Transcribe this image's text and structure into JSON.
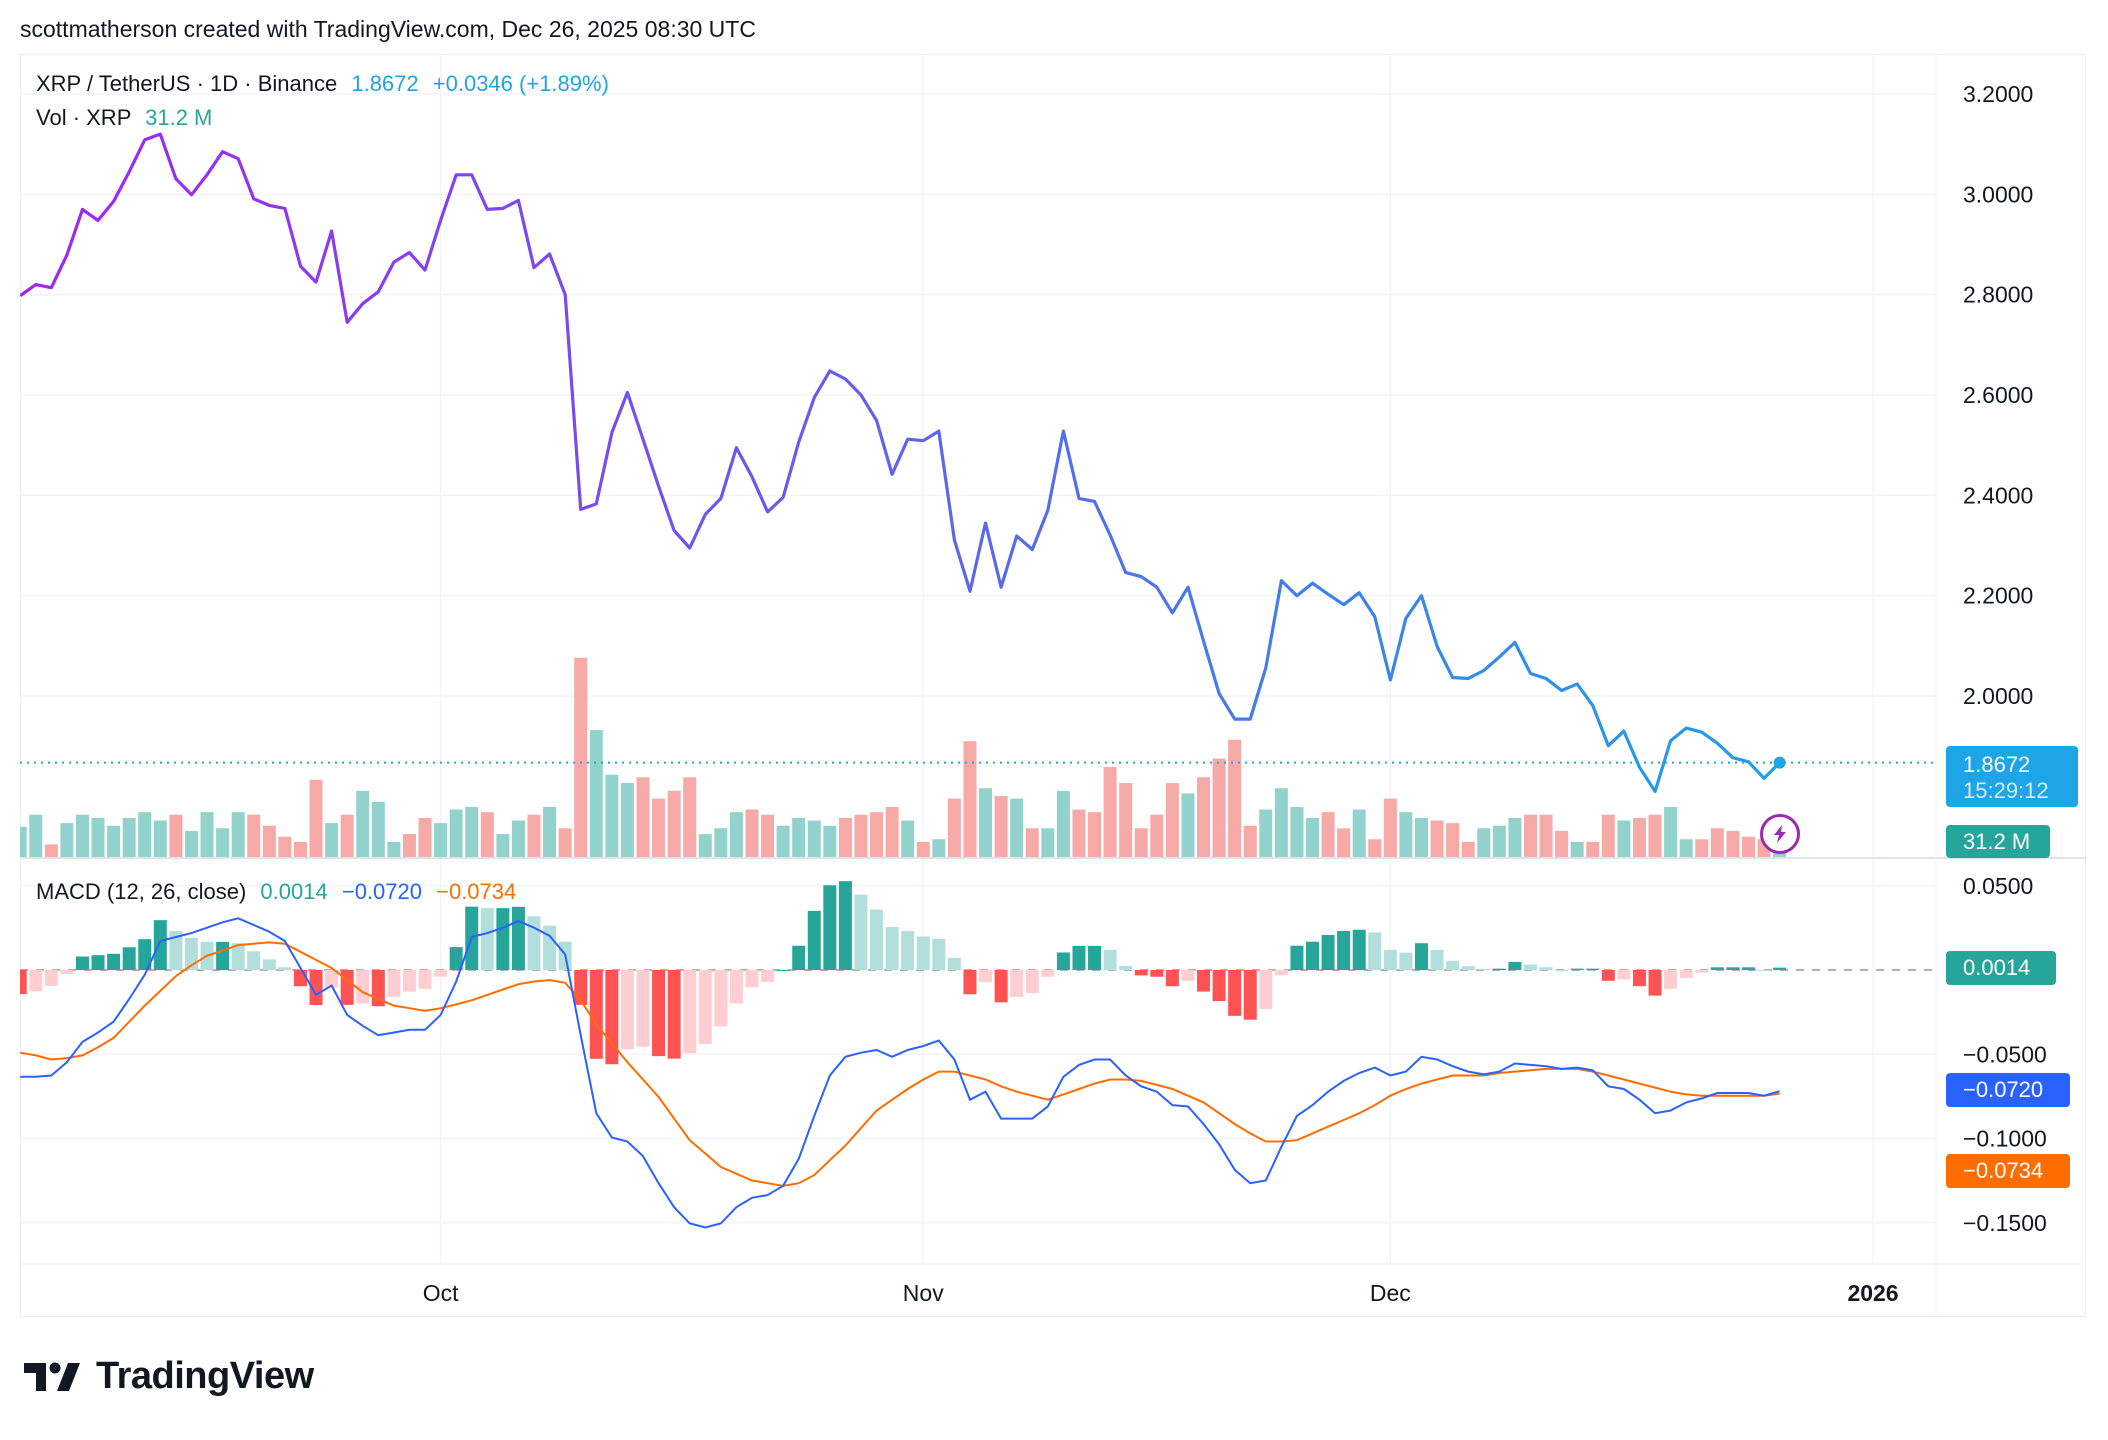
{
  "credit": "scottmatherson created with TradingView.com, Dec 26, 2025 08:30 UTC",
  "legend": {
    "symbol": "XRP / TetherUS · 1D · Binance",
    "price": "1.8672",
    "change": "+0.0346 (+1.89%)",
    "vol_label": "Vol · XRP",
    "vol_value": "31.2 M",
    "macd_label": "MACD (12, 26, close)",
    "macd_hist": "0.0014",
    "macd_line": "−0.0720",
    "macd_signal": "−0.0734"
  },
  "price_badge": {
    "price": "1.8672",
    "countdown": "15:29:12"
  },
  "vol_badge": "31.2 M",
  "macd_badges": {
    "hist": "0.0014",
    "macd": "−0.0720",
    "signal": "−0.0734"
  },
  "logo": "TradingView",
  "colors": {
    "line_start": "#a324f2",
    "line_end": "#1da1e6",
    "price_badge": "#1ea5e8",
    "vol_up": "#92d2cc",
    "vol_down": "#f7a9a7",
    "hist_up_strong": "#26a69a",
    "hist_up_weak": "#b2dfdb",
    "hist_down_strong": "#ff5252",
    "hist_down_weak": "#ffcdd2",
    "macd": "#2962ff",
    "signal": "#ff6d00",
    "lightning": "#9c27b0"
  },
  "chart_data": {
    "type": "line",
    "title": "XRP / TetherUS · 1D · Binance",
    "price_axis": {
      "ticks": [
        "3.2000",
        "3.0000",
        "2.8000",
        "2.6000",
        "2.4000",
        "2.2000",
        "2.0000"
      ],
      "tick_values": [
        3.2,
        3.0,
        2.8,
        2.6,
        2.4,
        2.2,
        2.0
      ],
      "ylim": [
        1.75,
        3.27
      ]
    },
    "macd_axis": {
      "ticks": [
        "0.0500",
        "−0.0500",
        "−0.1000",
        "−0.1500"
      ],
      "tick_values": [
        0.05,
        -0.05,
        -0.1,
        -0.15
      ]
    },
    "time_axis": {
      "ticks": [
        "Oct",
        "Nov",
        "Dec",
        "2026"
      ],
      "tick_dates": [
        "2025-10-01",
        "2025-11-01",
        "2025-12-01",
        "2026-01-01"
      ]
    },
    "grid": true,
    "dates": [
      "2025-09-04",
      "2025-09-05",
      "2025-09-06",
      "2025-09-07",
      "2025-09-08",
      "2025-09-09",
      "2025-09-10",
      "2025-09-11",
      "2025-09-12",
      "2025-09-13",
      "2025-09-14",
      "2025-09-15",
      "2025-09-16",
      "2025-09-17",
      "2025-09-18",
      "2025-09-19",
      "2025-09-20",
      "2025-09-21",
      "2025-09-22",
      "2025-09-23",
      "2025-09-24",
      "2025-09-25",
      "2025-09-26",
      "2025-09-27",
      "2025-09-28",
      "2025-09-29",
      "2025-09-30",
      "2025-10-01",
      "2025-10-02",
      "2025-10-03",
      "2025-10-04",
      "2025-10-05",
      "2025-10-06",
      "2025-10-07",
      "2025-10-08",
      "2025-10-09",
      "2025-10-10",
      "2025-10-11",
      "2025-10-12",
      "2025-10-13",
      "2025-10-14",
      "2025-10-15",
      "2025-10-16",
      "2025-10-17",
      "2025-10-18",
      "2025-10-19",
      "2025-10-20",
      "2025-10-21",
      "2025-10-22",
      "2025-10-23",
      "2025-10-24",
      "2025-10-25",
      "2025-10-26",
      "2025-10-27",
      "2025-10-28",
      "2025-10-29",
      "2025-10-30",
      "2025-10-31",
      "2025-11-01",
      "2025-11-02",
      "2025-11-03",
      "2025-11-04",
      "2025-11-05",
      "2025-11-06",
      "2025-11-07",
      "2025-11-08",
      "2025-11-09",
      "2025-11-10",
      "2025-11-11",
      "2025-11-12",
      "2025-11-13",
      "2025-11-14",
      "2025-11-15",
      "2025-11-16",
      "2025-11-17",
      "2025-11-18",
      "2025-11-19",
      "2025-11-20",
      "2025-11-21",
      "2025-11-22",
      "2025-11-23",
      "2025-11-24",
      "2025-11-25",
      "2025-11-26",
      "2025-11-27",
      "2025-11-28",
      "2025-11-29",
      "2025-11-30",
      "2025-12-01",
      "2025-12-02",
      "2025-12-03",
      "2025-12-04",
      "2025-12-05",
      "2025-12-06",
      "2025-12-07",
      "2025-12-08",
      "2025-12-09",
      "2025-12-10",
      "2025-12-11",
      "2025-12-12",
      "2025-12-13",
      "2025-12-14",
      "2025-12-15",
      "2025-12-16",
      "2025-12-17",
      "2025-12-18",
      "2025-12-19",
      "2025-12-20",
      "2025-12-21",
      "2025-12-22",
      "2025-12-23",
      "2025-12-24",
      "2025-12-25",
      "2025-12-26"
    ],
    "close": [
      2.798,
      2.82,
      2.814,
      2.879,
      2.97,
      2.948,
      2.986,
      3.045,
      3.109,
      3.12,
      3.031,
      2.999,
      3.039,
      3.085,
      3.071,
      2.991,
      2.978,
      2.972,
      2.857,
      2.825,
      2.927,
      2.745,
      2.782,
      2.806,
      2.865,
      2.884,
      2.849,
      2.948,
      3.039,
      3.039,
      2.97,
      2.972,
      2.988,
      2.854,
      2.881,
      2.8,
      2.372,
      2.383,
      2.525,
      2.605,
      2.512,
      2.418,
      2.33,
      2.295,
      2.362,
      2.394,
      2.495,
      2.437,
      2.367,
      2.396,
      2.506,
      2.595,
      2.648,
      2.632,
      2.6,
      2.549,
      2.442,
      2.512,
      2.509,
      2.528,
      2.311,
      2.209,
      2.345,
      2.217,
      2.319,
      2.292,
      2.37,
      2.528,
      2.394,
      2.388,
      2.321,
      2.246,
      2.238,
      2.217,
      2.166,
      2.217,
      2.11,
      2.005,
      1.954,
      1.954,
      2.056,
      2.23,
      2.2,
      2.225,
      2.203,
      2.182,
      2.206,
      2.158,
      2.032,
      2.155,
      2.2,
      2.099,
      2.037,
      2.035,
      2.051,
      2.078,
      2.107,
      2.045,
      2.035,
      2.011,
      2.024,
      1.981,
      1.901,
      1.93,
      1.858,
      1.81,
      1.911,
      1.936,
      1.928,
      1.906,
      1.877,
      1.869,
      1.836,
      1.8672
    ],
    "volume_millions": [
      48,
      67,
      21,
      54,
      67,
      62,
      50,
      62,
      71,
      58,
      67,
      42,
      71,
      46,
      71,
      67,
      50,
      33,
      25,
      121,
      54,
      67,
      104,
      87,
      25,
      37,
      62,
      54,
      75,
      79,
      71,
      37,
      58,
      67,
      79,
      46,
      310,
      198,
      129,
      116,
      125,
      92,
      104,
      125,
      37,
      46,
      71,
      75,
      67,
      50,
      62,
      58,
      50,
      62,
      67,
      71,
      79,
      58,
      25,
      29,
      92,
      181,
      108,
      96,
      92,
      46,
      46,
      104,
      75,
      71,
      141,
      116,
      46,
      67,
      116,
      100,
      125,
      154,
      183,
      50,
      75,
      108,
      79,
      62,
      71,
      46,
      75,
      29,
      92,
      71,
      62,
      58,
      54,
      25,
      46,
      50,
      62,
      67,
      67,
      42,
      25,
      25,
      67,
      58,
      62,
      67,
      79,
      29,
      29,
      46,
      42,
      33,
      29,
      31.2
    ],
    "volume_up": [
      1,
      1,
      0,
      1,
      1,
      1,
      1,
      1,
      1,
      1,
      0,
      1,
      1,
      1,
      1,
      0,
      0,
      0,
      0,
      0,
      1,
      0,
      1,
      1,
      1,
      0,
      0,
      1,
      1,
      1,
      0,
      1,
      1,
      0,
      1,
      0,
      0,
      1,
      1,
      1,
      0,
      0,
      0,
      0,
      1,
      1,
      1,
      0,
      0,
      1,
      1,
      1,
      1,
      0,
      0,
      0,
      0,
      1,
      0,
      1,
      0,
      0,
      1,
      0,
      1,
      0,
      1,
      1,
      0,
      0,
      0,
      0,
      0,
      0,
      0,
      1,
      0,
      0,
      0,
      0,
      1,
      1,
      1,
      1,
      0,
      0,
      1,
      0,
      0,
      1,
      1,
      0,
      0,
      0,
      1,
      1,
      1,
      0,
      0,
      0,
      1,
      0,
      0,
      1,
      0,
      0,
      1,
      1,
      0,
      0,
      0,
      0,
      0,
      1
    ],
    "macd": [
      -0.0634,
      -0.0634,
      -0.0626,
      -0.0547,
      -0.0427,
      -0.0371,
      -0.0307,
      -0.0172,
      -0.0028,
      0.0172,
      0.0196,
      0.0219,
      0.0251,
      0.0283,
      0.0307,
      0.0267,
      0.0227,
      0.0172,
      0.0012,
      -0.0148,
      -0.0092,
      -0.0267,
      -0.0331,
      -0.0387,
      -0.0371,
      -0.0355,
      -0.0355,
      -0.0267,
      -0.0068,
      0.0196,
      0.0219,
      0.0251,
      0.0291,
      0.0251,
      0.0203,
      0.0092,
      -0.0387,
      -0.085,
      -0.0994,
      -0.1018,
      -0.1105,
      -0.1265,
      -0.1408,
      -0.1504,
      -0.1528,
      -0.1504,
      -0.1408,
      -0.1352,
      -0.1336,
      -0.1281,
      -0.1121,
      -0.0866,
      -0.0626,
      -0.0515,
      -0.0491,
      -0.0475,
      -0.0515,
      -0.0475,
      -0.0451,
      -0.0419,
      -0.0531,
      -0.077,
      -0.0722,
      -0.0882,
      -0.0882,
      -0.0882,
      -0.081,
      -0.0634,
      -0.0563,
      -0.0531,
      -0.0531,
      -0.0626,
      -0.069,
      -0.0722,
      -0.0802,
      -0.081,
      -0.0914,
      -0.1034,
      -0.1186,
      -0.1265,
      -0.1249,
      -0.1049,
      -0.0866,
      -0.0802,
      -0.0722,
      -0.0658,
      -0.0611,
      -0.0579,
      -0.0626,
      -0.0603,
      -0.0515,
      -0.0531,
      -0.0571,
      -0.0603,
      -0.0619,
      -0.0603,
      -0.0555,
      -0.0563,
      -0.0571,
      -0.0587,
      -0.0579,
      -0.0595,
      -0.069,
      -0.0706,
      -0.077,
      -0.085,
      -0.0834,
      -0.0786,
      -0.0762,
      -0.073,
      -0.073,
      -0.073,
      -0.0746,
      -0.072
    ],
    "signal": [
      -0.0491,
      -0.0507,
      -0.0531,
      -0.0523,
      -0.0507,
      -0.0459,
      -0.0403,
      -0.0307,
      -0.0211,
      -0.0124,
      -0.0036,
      0.0028,
      0.0084,
      0.0116,
      0.0148,
      0.0156,
      0.0164,
      0.0156,
      0.0108,
      0.006,
      0.0012,
      -0.006,
      -0.0132,
      -0.0172,
      -0.0211,
      -0.0227,
      -0.0243,
      -0.0227,
      -0.0204,
      -0.018,
      -0.0148,
      -0.0116,
      -0.0084,
      -0.0068,
      -0.006,
      -0.0076,
      -0.018,
      -0.0323,
      -0.0435,
      -0.0547,
      -0.065,
      -0.0754,
      -0.0882,
      -0.101,
      -0.1089,
      -0.1169,
      -0.1209,
      -0.1249,
      -0.1265,
      -0.1281,
      -0.1265,
      -0.1217,
      -0.1129,
      -0.1042,
      -0.0938,
      -0.0834,
      -0.077,
      -0.0706,
      -0.065,
      -0.0603,
      -0.0603,
      -0.0626,
      -0.065,
      -0.069,
      -0.0722,
      -0.0746,
      -0.077,
      -0.0738,
      -0.0706,
      -0.0674,
      -0.065,
      -0.065,
      -0.0658,
      -0.0682,
      -0.0706,
      -0.0746,
      -0.0786,
      -0.085,
      -0.0914,
      -0.097,
      -0.1018,
      -0.1018,
      -0.101,
      -0.097,
      -0.093,
      -0.089,
      -0.085,
      -0.0802,
      -0.0746,
      -0.0706,
      -0.0674,
      -0.065,
      -0.0626,
      -0.0626,
      -0.0626,
      -0.0611,
      -0.0603,
      -0.0595,
      -0.0587,
      -0.0587,
      -0.0587,
      -0.0603,
      -0.0626,
      -0.065,
      -0.0674,
      -0.0698,
      -0.0722,
      -0.0738,
      -0.0746,
      -0.0746,
      -0.0746,
      -0.0746,
      -0.0746,
      -0.0734
    ],
    "last_histogram": 0.0014
  }
}
